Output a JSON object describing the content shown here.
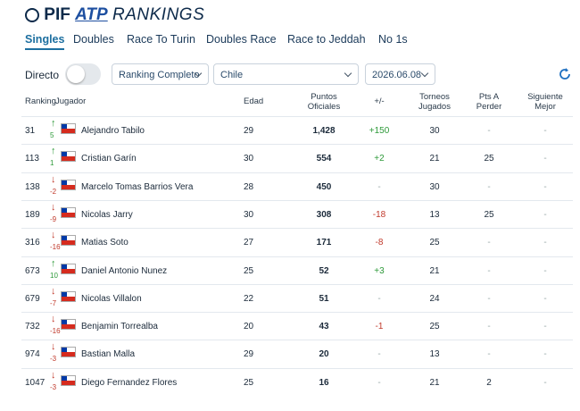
{
  "header": {
    "logo_pif": "PIF",
    "logo_atp": "ATP",
    "logo_rankings": "RANKINGS"
  },
  "tabs": [
    "Singles",
    "Doubles",
    "Race To Turin",
    "Doubles Race",
    "Race to Jeddah",
    "No 1s"
  ],
  "filters": {
    "live_label": "Directo",
    "ranking": "Ranking Completo",
    "country": "Chile",
    "date": "2026.06.08"
  },
  "table": {
    "columns": [
      "Ranking",
      "Jugador",
      "Edad",
      "Puntos Oficiales",
      "+/-",
      "Torneos Jugados",
      "Pts A Perder",
      "Siguiente Mejor"
    ],
    "rows": [
      [
        31,
        5,
        "Alejandro Tabilo",
        29,
        "1,428",
        "+150",
        30,
        "-",
        "-"
      ],
      [
        113,
        1,
        "Cristian Garín",
        30,
        554,
        "+2",
        21,
        25,
        "-"
      ],
      [
        138,
        -2,
        "Marcelo Tomas Barrios Vera",
        28,
        450,
        "-",
        30,
        "-",
        "-"
      ],
      [
        189,
        -9,
        "Nicolas Jarry",
        30,
        308,
        "-18",
        13,
        25,
        "-"
      ],
      [
        316,
        -16,
        "Matias Soto",
        27,
        171,
        "-8",
        25,
        "-",
        "-"
      ],
      [
        673,
        10,
        "Daniel Antonio Nunez",
        25,
        52,
        "+3",
        21,
        "-",
        "-"
      ],
      [
        679,
        -7,
        "Nicolas Villalon",
        22,
        51,
        "-",
        24,
        "-",
        "-"
      ],
      [
        732,
        -16,
        "Benjamin Torrealba",
        20,
        43,
        "-1",
        25,
        "-",
        "-"
      ],
      [
        974,
        -3,
        "Bastian Malla",
        29,
        20,
        "-",
        13,
        "-",
        "-"
      ],
      [
        1047,
        -3,
        "Diego Fernandez Flores",
        25,
        16,
        "-",
        21,
        2,
        "-"
      ]
    ]
  }
}
